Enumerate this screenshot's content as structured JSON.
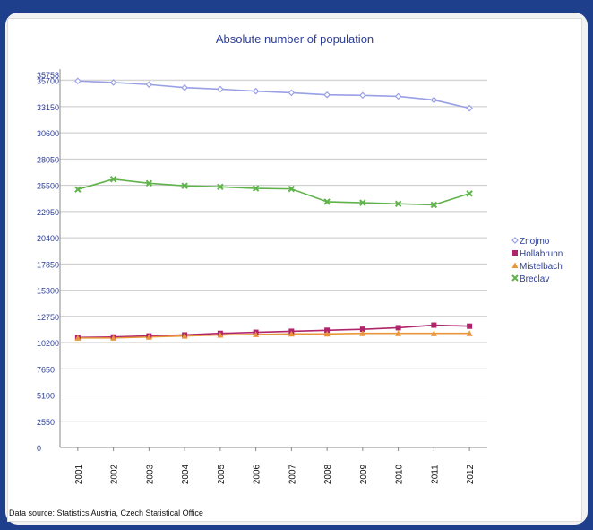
{
  "chart_data": {
    "type": "line",
    "title": "Absolute number of population",
    "xlabel": "",
    "ylabel": "",
    "categories": [
      "2001",
      "2002",
      "2003",
      "2004",
      "2005",
      "2006",
      "2007",
      "2008",
      "2009",
      "2010",
      "2011",
      "2012"
    ],
    "yticks": [
      "0",
      "2550",
      "5100",
      "7650",
      "10200",
      "12750",
      "15300",
      "17850",
      "20400",
      "22950",
      "25500",
      "28050",
      "30600",
      "33150",
      "35700",
      "35758"
    ],
    "ylim": [
      0,
      35758
    ],
    "grid": true,
    "legend_position": "right",
    "series": [
      {
        "name": "Znojmo",
        "color": "#9aa0e6",
        "marker": "diamond",
        "values": [
          35650,
          35500,
          35300,
          35000,
          34850,
          34650,
          34500,
          34300,
          34250,
          34150,
          33800,
          33000
        ]
      },
      {
        "name": "Hollabrunn",
        "color": "#b0246b",
        "marker": "square",
        "values": [
          10700,
          10750,
          10850,
          10950,
          11100,
          11200,
          11300,
          11400,
          11500,
          11650,
          11900,
          11800
        ]
      },
      {
        "name": "Mistelbach",
        "color": "#e8963a",
        "marker": "triangle",
        "values": [
          10650,
          10650,
          10750,
          10850,
          10950,
          11000,
          11050,
          11050,
          11100,
          11100,
          11100,
          11100
        ]
      },
      {
        "name": "Breclav",
        "color": "#5fb34a",
        "marker": "cross",
        "values": [
          25100,
          26100,
          25700,
          25450,
          25350,
          25200,
          25150,
          23900,
          23800,
          23700,
          23600,
          24700
        ]
      }
    ]
  },
  "source": "Data source: Statistics Austria, Czech Statistical Office"
}
